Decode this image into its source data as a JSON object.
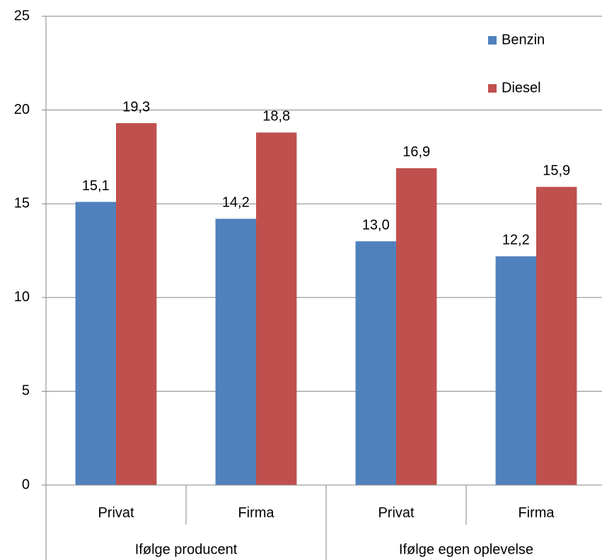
{
  "chart_data": {
    "type": "bar",
    "categories": [
      "Privat",
      "Firma",
      "Privat",
      "Firma"
    ],
    "groups": [
      "Ifølge producent",
      "Ifølge egen oplevelse"
    ],
    "series": [
      {
        "name": "Benzin",
        "color": "#4f81bd",
        "values": [
          15.1,
          14.2,
          13.0,
          12.2
        ],
        "value_labels": [
          "15,1",
          "14,2",
          "13,0",
          "12,2"
        ]
      },
      {
        "name": "Diesel",
        "color": "#c0504d",
        "values": [
          19.3,
          18.8,
          16.9,
          15.9
        ],
        "value_labels": [
          "19,3",
          "18,8",
          "16,9",
          "15,9"
        ]
      }
    ],
    "ylim": [
      0,
      25
    ],
    "yticks": [
      0,
      5,
      10,
      15,
      20,
      25
    ],
    "grid": true,
    "legend": "top-right"
  }
}
